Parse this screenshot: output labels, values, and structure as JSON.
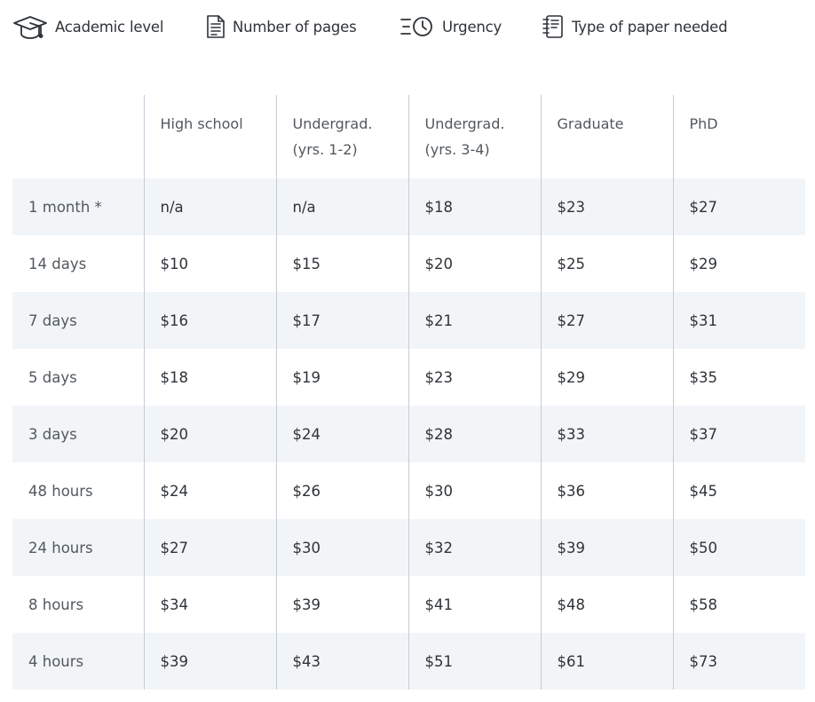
{
  "factors": [
    {
      "label": "Academic level",
      "icon": "graduation-cap-icon"
    },
    {
      "label": "Number of pages",
      "icon": "document-icon"
    },
    {
      "label": "Urgency",
      "icon": "clock-list-icon"
    },
    {
      "label": "Type of paper needed",
      "icon": "notebook-icon"
    }
  ],
  "table": {
    "corner": "",
    "columns": [
      {
        "line1": "High school",
        "line2": ""
      },
      {
        "line1": "Undergrad.",
        "line2": "(yrs. 1-2)"
      },
      {
        "line1": "Undergrad.",
        "line2": "(yrs. 3-4)"
      },
      {
        "line1": "Graduate",
        "line2": ""
      },
      {
        "line1": "PhD",
        "line2": ""
      }
    ],
    "rows": [
      {
        "term": "1 month *",
        "prices": [
          "n/a",
          "n/a",
          "$18",
          "$23",
          "$27"
        ]
      },
      {
        "term": "14 days",
        "prices": [
          "$10",
          "$15",
          "$20",
          "$25",
          "$29"
        ]
      },
      {
        "term": "7 days",
        "prices": [
          "$16",
          "$17",
          "$21",
          "$27",
          "$31"
        ]
      },
      {
        "term": "5 days",
        "prices": [
          "$18",
          "$19",
          "$23",
          "$29",
          "$35"
        ]
      },
      {
        "term": "3 days",
        "prices": [
          "$20",
          "$24",
          "$28",
          "$33",
          "$37"
        ]
      },
      {
        "term": "48 hours",
        "prices": [
          "$24",
          "$26",
          "$30",
          "$36",
          "$45"
        ]
      },
      {
        "term": "24 hours",
        "prices": [
          "$27",
          "$30",
          "$32",
          "$39",
          "$50"
        ]
      },
      {
        "term": "8 hours",
        "prices": [
          "$34",
          "$39",
          "$41",
          "$48",
          "$58"
        ]
      },
      {
        "term": "4 hours",
        "prices": [
          "$39",
          "$43",
          "$51",
          "$61",
          "$73"
        ]
      }
    ]
  },
  "colors": {
    "text": "#2e3338",
    "muted_text": "#52585e",
    "stripe": "#f2f5f8",
    "divider": "#c3ccd5"
  }
}
